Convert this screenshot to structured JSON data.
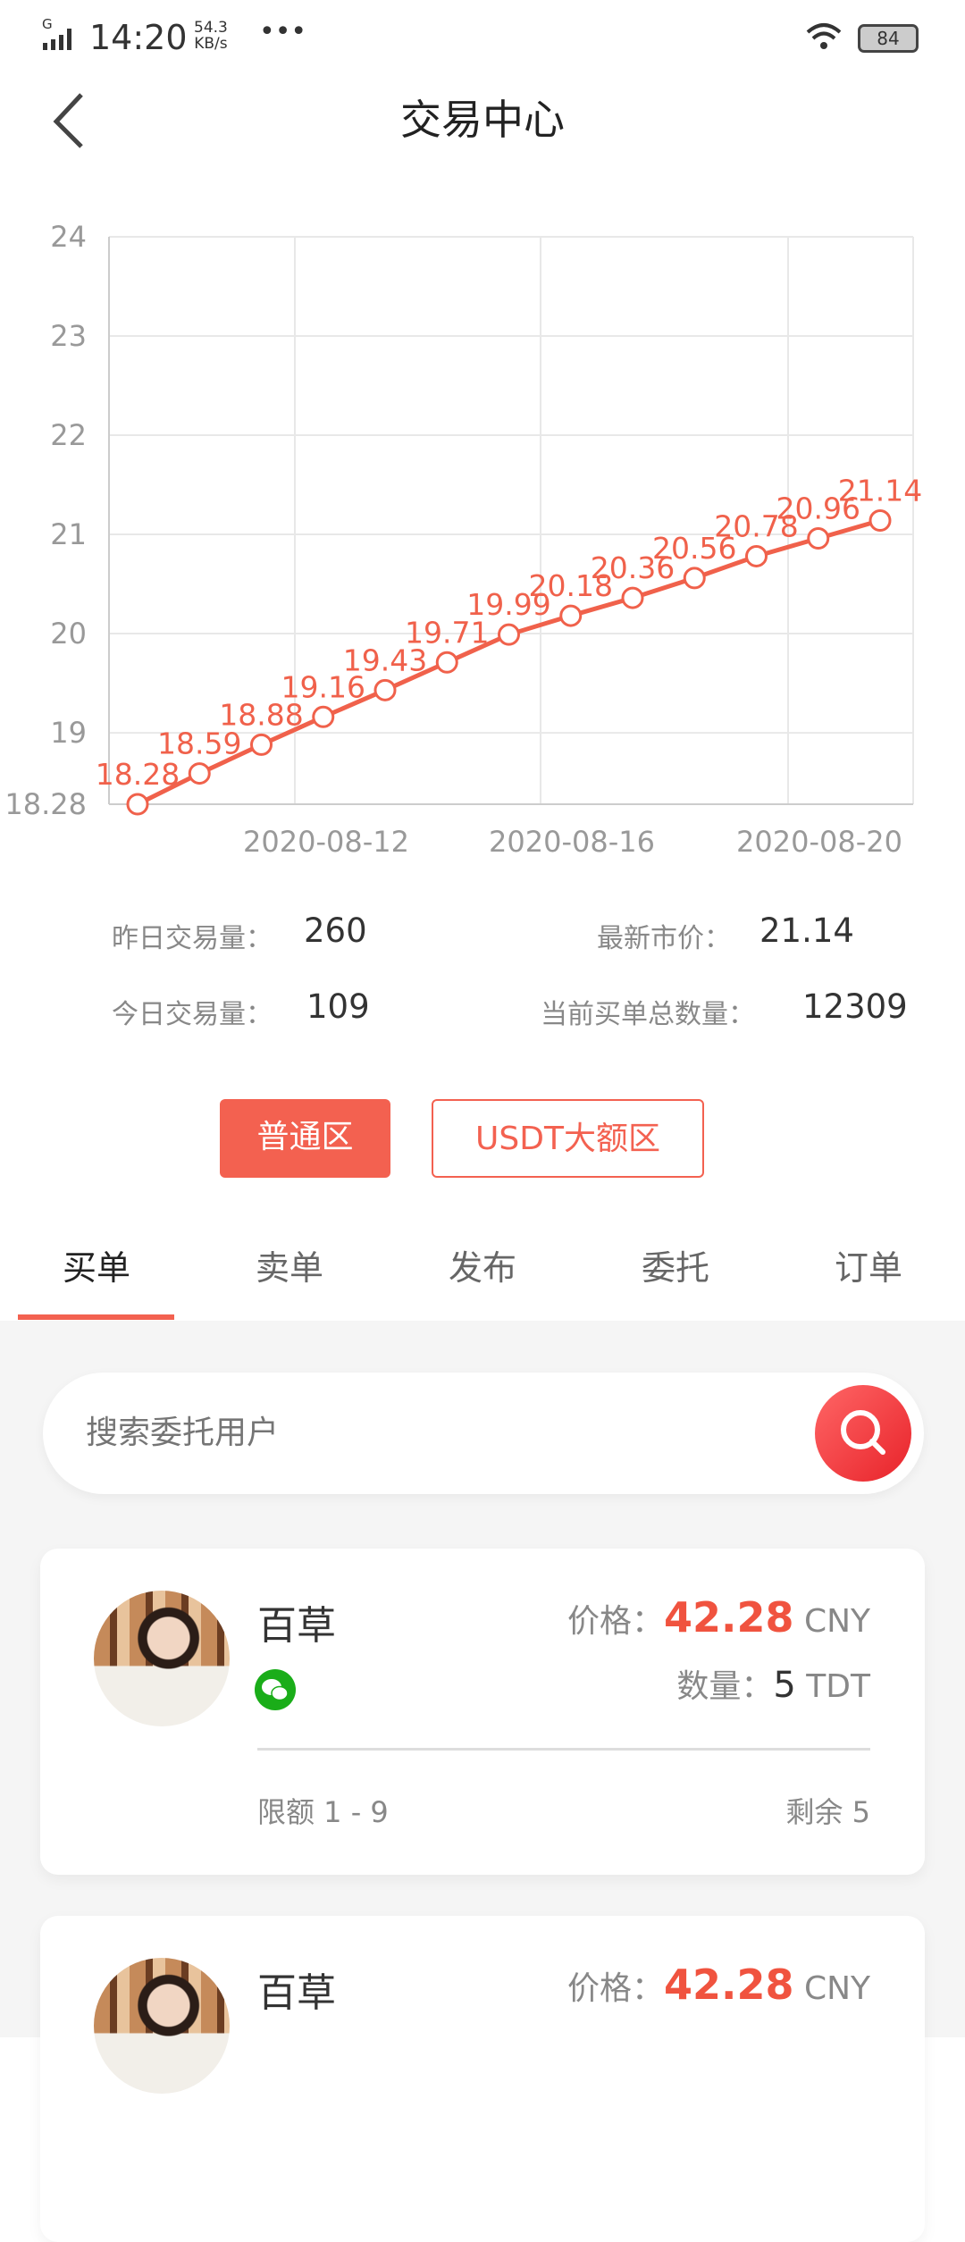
{
  "status_bar": {
    "network": "G",
    "time": "14:20",
    "speed_value": "54.3",
    "speed_unit": "KB/s",
    "more": "•••",
    "battery": "84"
  },
  "header": {
    "title": "交易中心"
  },
  "chart_data": {
    "type": "line",
    "values": [
      18.28,
      18.59,
      18.88,
      19.16,
      19.43,
      19.71,
      19.99,
      20.18,
      20.36,
      20.56,
      20.78,
      20.96,
      21.14
    ],
    "data_labels": [
      "18.28",
      "18.59",
      "18.88",
      "19.16",
      "19.43",
      "19.71",
      "19.99",
      "20.18",
      "20.36",
      "20.56",
      "20.78",
      "20.96",
      "21.14"
    ],
    "y_ticks": [
      "18.28",
      "19",
      "20",
      "21",
      "22",
      "23",
      "24"
    ],
    "x_ticks": [
      "2020-08-12",
      "2020-08-16",
      "2020-08-20"
    ],
    "ylim": [
      18.28,
      24
    ],
    "grid": true,
    "color": "#f0614b"
  },
  "stats": {
    "yesterday_label": "昨日交易量：",
    "yesterday_value": "260",
    "latest_label": "最新市价：",
    "latest_value": "21.14",
    "today_label": "今日交易量：",
    "today_value": "109",
    "buy_total_label": "当前买单总数量：",
    "buy_total_value": "12309"
  },
  "zones": {
    "normal": "普通区",
    "usdt": "USDT大额区"
  },
  "tabs": [
    {
      "label": "买单"
    },
    {
      "label": "卖单"
    },
    {
      "label": "发布"
    },
    {
      "label": "委托"
    },
    {
      "label": "订单"
    }
  ],
  "search": {
    "placeholder": "搜索委托用户"
  },
  "orders": [
    {
      "name": "百草",
      "price_label": "价格：",
      "price": "42.28",
      "price_unit": "CNY",
      "qty_label": "数量：",
      "qty": "5",
      "qty_unit": "TDT",
      "limit": "限额 1 - 9",
      "remain": "剩余 5"
    },
    {
      "name": "百草",
      "price_label": "价格：",
      "price": "42.28",
      "price_unit": "CNY"
    }
  ]
}
